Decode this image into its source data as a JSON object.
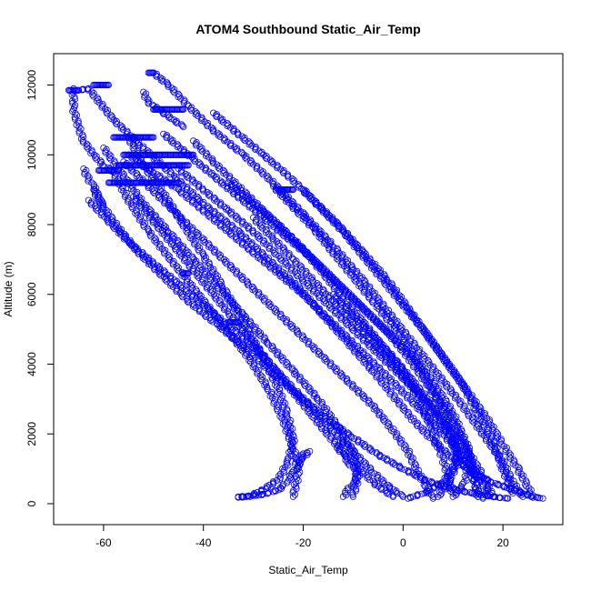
{
  "chart_data": {
    "type": "scatter",
    "title": "ATOM4 Southbound Static_Air_Temp",
    "xlabel": "Static_Air_Temp",
    "ylabel": "Altitude (m)",
    "xlim": [
      -70,
      32
    ],
    "ylim": [
      -600,
      12900
    ],
    "xticks": [
      -60,
      -40,
      -20,
      0,
      20
    ],
    "yticks": [
      0,
      2000,
      4000,
      6000,
      8000,
      10000,
      12000
    ],
    "marker": "open-circle",
    "color": "#0000ff",
    "grid": false,
    "series": [
      {
        "x": [
          -65,
          -63,
          -58,
          -52,
          -46,
          -40,
          -33,
          -27,
          -21,
          -16,
          -11,
          -6,
          -2,
          2,
          6,
          10,
          14,
          18,
          22,
          26,
          28
        ],
        "y": [
          11850,
          11900,
          11000,
          10200,
          9400,
          8600,
          7800,
          7000,
          6200,
          5400,
          4600,
          3800,
          3100,
          2400,
          1800,
          1300,
          900,
          600,
          400,
          200,
          150
        ]
      },
      {
        "x": [
          -50,
          -47,
          -43,
          -38,
          -32,
          -26,
          -20,
          -14,
          -8,
          -3,
          2,
          7,
          12,
          16,
          20,
          22,
          24
        ],
        "y": [
          12350,
          12000,
          11400,
          10700,
          10000,
          9200,
          8300,
          7400,
          6400,
          5500,
          4600,
          3700,
          2800,
          2000,
          1200,
          600,
          200
        ]
      },
      {
        "x": [
          -62,
          -60,
          -57,
          -53,
          -48,
          -43,
          -37,
          -31,
          -26,
          -20,
          -15,
          -10,
          -5,
          0,
          4,
          8,
          12,
          16,
          19,
          21
        ],
        "y": [
          9000,
          8500,
          7900,
          7200,
          6500,
          5800,
          5100,
          4400,
          3700,
          3000,
          2400,
          1900,
          1400,
          1000,
          700,
          500,
          350,
          250,
          180,
          150
        ]
      },
      {
        "x": [
          -55,
          -52,
          -48,
          -44,
          -40,
          -36,
          -32,
          -28,
          -25,
          -23,
          -22,
          -23,
          -25,
          -28,
          -31,
          -33
        ],
        "y": [
          10500,
          9700,
          8900,
          8000,
          7100,
          6200,
          5200,
          4200,
          3300,
          2500,
          1800,
          1200,
          700,
          400,
          200,
          180
        ]
      },
      {
        "x": [
          -58,
          -55,
          -51,
          -46,
          -41,
          -36,
          -31,
          -27,
          -24,
          -22,
          -21,
          -22
        ],
        "y": [
          9500,
          8700,
          7800,
          6900,
          6000,
          5100,
          4200,
          3300,
          2400,
          1600,
          900,
          200
        ]
      },
      {
        "x": [
          -60,
          -56,
          -52,
          -47,
          -42,
          -37,
          -32,
          -27,
          -22,
          -17,
          -13,
          -10,
          -9,
          -10
        ],
        "y": [
          10200,
          9400,
          8600,
          7800,
          7000,
          6200,
          5400,
          4600,
          3800,
          3000,
          2200,
          1500,
          800,
          200
        ]
      },
      {
        "x": [
          -56,
          -51,
          -46,
          -41,
          -36,
          -31,
          -26,
          -21,
          -16,
          -11,
          -6,
          -2,
          1,
          3,
          5,
          6
        ],
        "y": [
          9800,
          9100,
          8400,
          7700,
          7000,
          6300,
          5600,
          4900,
          4200,
          3500,
          2800,
          2100,
          1500,
          900,
          400,
          150
        ]
      },
      {
        "x": [
          -45,
          -40,
          -35,
          -30,
          -25,
          -20,
          -15,
          -10,
          -5,
          0,
          5,
          9,
          13,
          16,
          18
        ],
        "y": [
          9600,
          9000,
          8400,
          7800,
          7100,
          6400,
          5700,
          5000,
          4300,
          3600,
          2900,
          2200,
          1500,
          800,
          200
        ]
      },
      {
        "x": [
          -42,
          -38,
          -33,
          -28,
          -23,
          -18,
          -13,
          -8,
          -3,
          2,
          6,
          10,
          13,
          15
        ],
        "y": [
          10400,
          9800,
          9100,
          8400,
          7700,
          7000,
          6300,
          5600,
          4900,
          4200,
          3500,
          2600,
          1600,
          200
        ]
      },
      {
        "x": [
          -35,
          -30,
          -25,
          -20,
          -16,
          -12,
          -8,
          -4,
          0,
          4,
          8,
          11,
          13,
          12,
          10
        ],
        "y": [
          9200,
          8600,
          8000,
          7300,
          6600,
          5900,
          5200,
          4500,
          3800,
          3000,
          2200,
          1500,
          900,
          500,
          200
        ]
      },
      {
        "x": [
          -26,
          -22,
          -18,
          -14,
          -10,
          -6,
          -2,
          2,
          5,
          8,
          10,
          11,
          9,
          7
        ],
        "y": [
          9100,
          8500,
          7900,
          7200,
          6500,
          5800,
          5100,
          4300,
          3500,
          2700,
          1900,
          1200,
          600,
          200
        ]
      },
      {
        "x": [
          -63,
          -59,
          -55,
          -50,
          -45,
          -40,
          -35,
          -30,
          -26,
          -22,
          -18,
          -14,
          -10,
          -6,
          -3,
          0
        ],
        "y": [
          8700,
          8100,
          7500,
          6900,
          6300,
          5700,
          5100,
          4500,
          3900,
          3300,
          2700,
          2100,
          1500,
          900,
          500,
          200
        ]
      },
      {
        "x": [
          -54,
          -50,
          -46,
          -42,
          -38,
          -34,
          -30,
          -26,
          -22,
          -18,
          -14,
          -10,
          -6,
          -2
        ],
        "y": [
          8800,
          8100,
          7400,
          6700,
          6000,
          5300,
          4600,
          3900,
          3200,
          2500,
          1800,
          1200,
          600,
          200
        ]
      },
      {
        "x": [
          -30,
          -26,
          -22,
          -18,
          -14,
          -10,
          -6,
          -2,
          2,
          5,
          8,
          10
        ],
        "y": [
          8200,
          7600,
          7000,
          6400,
          5800,
          5200,
          4600,
          4000,
          3300,
          2400,
          1300,
          300
        ]
      },
      {
        "x": [
          -14,
          -10,
          -6,
          -2,
          2,
          6,
          9,
          11,
          10,
          8,
          4,
          1
        ],
        "y": [
          6000,
          5400,
          4800,
          4200,
          3500,
          2800,
          2100,
          1500,
          1000,
          600,
          300,
          150
        ]
      },
      {
        "x": [
          -66,
          -66,
          -65,
          -64,
          -62,
          -60,
          -58
        ],
        "y": [
          11900,
          11300,
          10800,
          10400,
          10000,
          9700,
          9500
        ]
      },
      {
        "x": [
          -52,
          -51,
          -50,
          -48,
          -46,
          -44
        ],
        "y": [
          11800,
          11500,
          11400,
          11200,
          11000,
          10800
        ]
      },
      {
        "x": [
          -64,
          -63,
          -62,
          -61,
          -60
        ],
        "y": [
          9600,
          9300,
          9100,
          8800,
          8500
        ]
      },
      {
        "x": [
          -33,
          -31,
          -29,
          -27,
          -25,
          -24,
          -23,
          -22,
          -21,
          -20,
          -19,
          -20,
          -21
        ],
        "y": [
          200,
          220,
          240,
          300,
          400,
          500,
          700,
          900,
          1100,
          1300,
          1500,
          1400,
          1200
        ]
      },
      {
        "x": [
          -12,
          -11,
          -10,
          -9,
          -10,
          -11,
          -12,
          -13,
          -12
        ],
        "y": [
          200,
          400,
          600,
          800,
          1000,
          1200,
          1400,
          1600,
          1800
        ]
      },
      {
        "x": [
          -55,
          -50,
          -45,
          -40,
          -35,
          -30,
          -25,
          -20,
          -15,
          -10,
          -5,
          0,
          4,
          8,
          11,
          14,
          16,
          17,
          16
        ],
        "y": [
          10000,
          9500,
          9000,
          8400,
          7800,
          7200,
          6600,
          6000,
          5300,
          4600,
          3900,
          3200,
          2600,
          2000,
          1500,
          1000,
          600,
          300,
          150
        ]
      },
      {
        "x": [
          -48,
          -43,
          -38,
          -33,
          -28,
          -23,
          -18,
          -13,
          -8,
          -3,
          1,
          5,
          9,
          12,
          14,
          15
        ],
        "y": [
          10600,
          10000,
          9400,
          8800,
          8200,
          7600,
          7000,
          6300,
          5600,
          4900,
          4200,
          3400,
          2600,
          1800,
          1000,
          200
        ]
      },
      {
        "x": [
          -38,
          -33,
          -28,
          -23,
          -18,
          -13,
          -8,
          -3,
          1,
          5,
          9,
          13,
          17,
          20,
          23,
          25,
          26
        ],
        "y": [
          11200,
          10600,
          10000,
          9400,
          8700,
          8000,
          7200,
          6400,
          5600,
          4800,
          4000,
          3200,
          2400,
          1700,
          1000,
          500,
          180
        ]
      },
      {
        "x": [
          -20,
          -16,
          -12,
          -8,
          -4,
          0,
          4,
          8,
          12,
          15,
          18,
          20,
          22
        ],
        "y": [
          9000,
          8400,
          7800,
          7100,
          6400,
          5700,
          5000,
          4200,
          3400,
          2600,
          1800,
          1000,
          300
        ]
      }
    ],
    "flat_segments": [
      {
        "x": [
          -67,
          -65
        ],
        "y": 11850
      },
      {
        "x": [
          -62,
          -59
        ],
        "y": 12000
      },
      {
        "x": [
          -51,
          -50
        ],
        "y": 12350
      },
      {
        "x": [
          -61,
          -57
        ],
        "y": 9550
      },
      {
        "x": [
          -58,
          -50
        ],
        "y": 10500
      },
      {
        "x": [
          -57,
          -43
        ],
        "y": 9700
      },
      {
        "x": [
          -59,
          -45
        ],
        "y": 9200
      },
      {
        "x": [
          -56,
          -42
        ],
        "y": 10000
      },
      {
        "x": [
          -50,
          -44
        ],
        "y": 11300
      },
      {
        "x": [
          -35,
          -33
        ],
        "y": 5200
      },
      {
        "x": [
          -44,
          -43
        ],
        "y": 6600
      },
      {
        "x": [
          -25,
          -22
        ],
        "y": 9000
      }
    ]
  }
}
